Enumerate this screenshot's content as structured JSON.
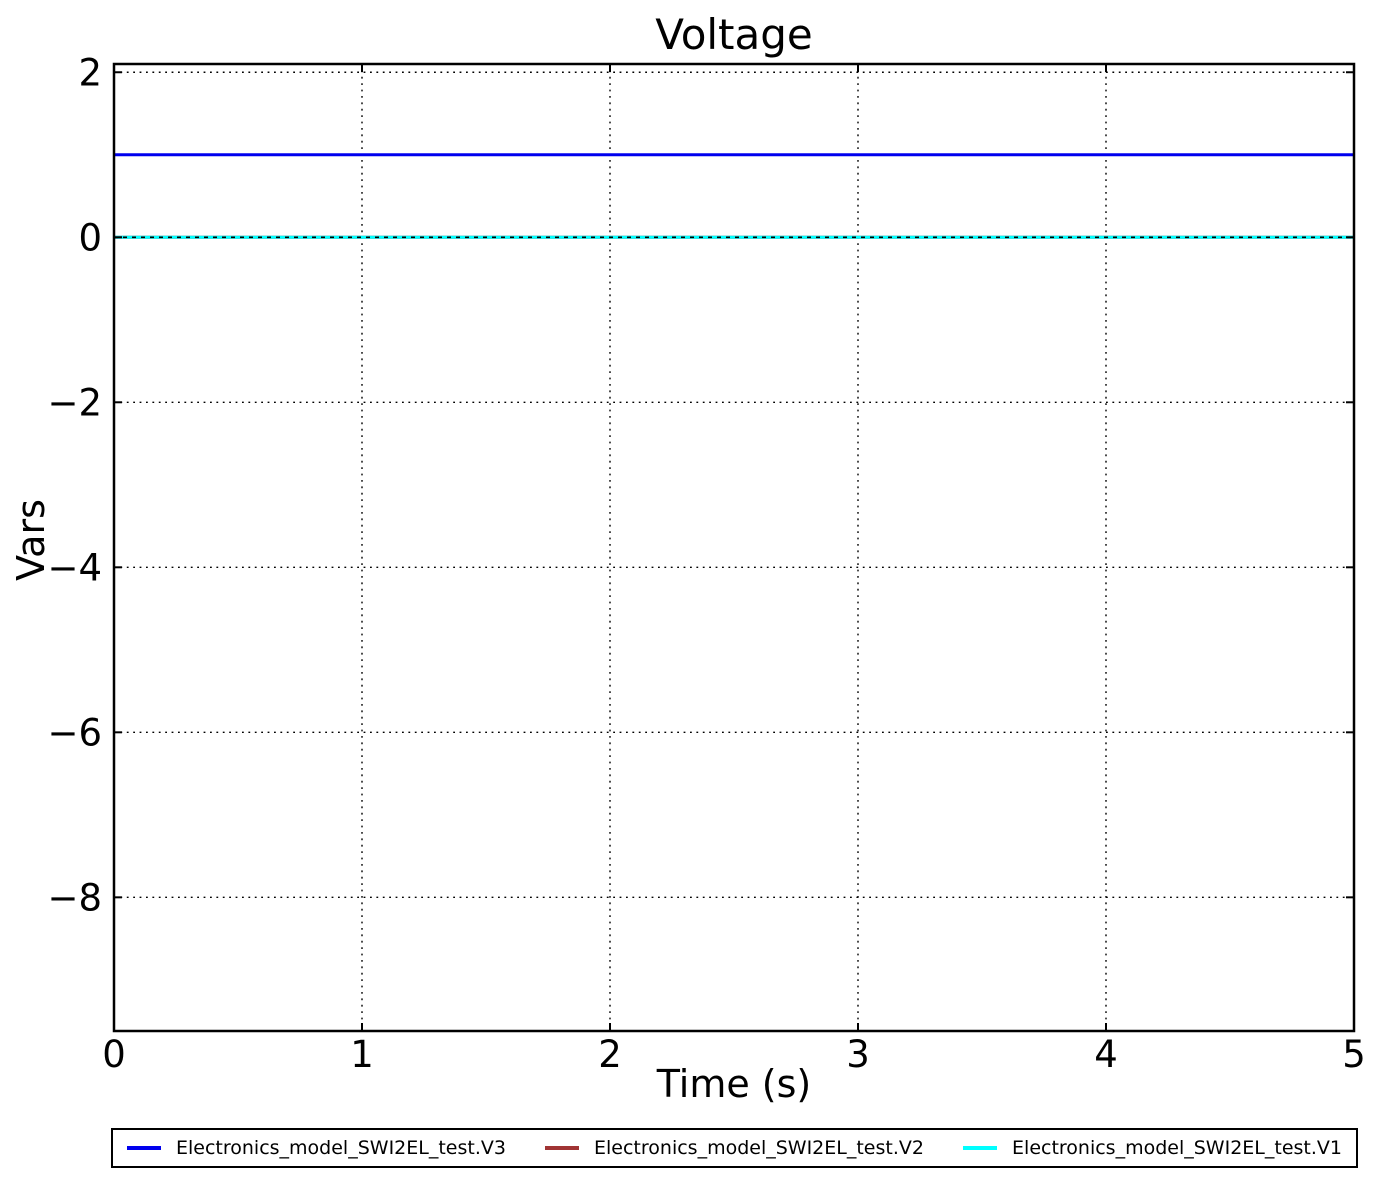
{
  "chart_data": {
    "type": "line",
    "title": "Voltage",
    "xlabel": "Time (s)",
    "ylabel": "Vars",
    "xlim": [
      0,
      5
    ],
    "ylim": [
      -9.62,
      2.1
    ],
    "x_ticks": [
      0,
      1,
      2,
      3,
      4,
      5
    ],
    "x_tick_labels": [
      "0",
      "1",
      "2",
      "3",
      "4",
      "5"
    ],
    "y_ticks": [
      2,
      0,
      -2,
      -4,
      -6,
      -8
    ],
    "y_tick_labels": [
      "2",
      "0",
      "−2",
      "−4",
      "−6",
      "−8"
    ],
    "grid": "dotted",
    "grid_color": "#000000",
    "legend_position": "bottom-outside",
    "axis_color": "#000000",
    "series": [
      {
        "name": "Electronics_model_SWI2EL_test.V3",
        "color": "#0000ee",
        "x": [
          0,
          5
        ],
        "values": [
          1,
          1
        ]
      },
      {
        "name": "Electronics_model_SWI2EL_test.V2",
        "color": "#a03434",
        "x": [
          0,
          5
        ],
        "values": [
          0,
          0
        ]
      },
      {
        "name": "Electronics_model_SWI2EL_test.V1",
        "color": "#00ffff",
        "x": [
          0,
          5
        ],
        "values": [
          0,
          0
        ]
      }
    ]
  }
}
